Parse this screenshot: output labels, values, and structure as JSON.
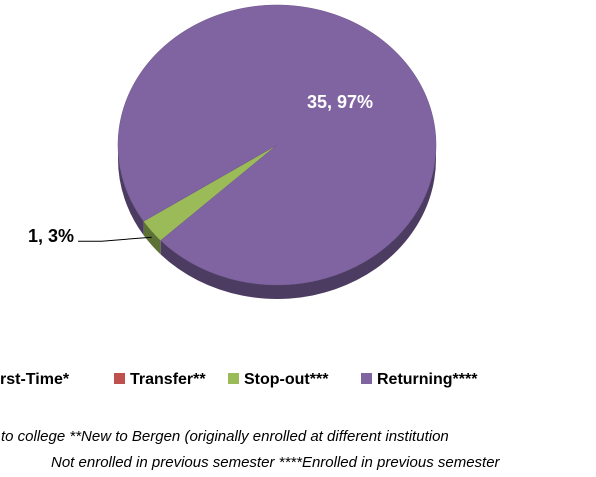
{
  "chart_data": {
    "type": "pie",
    "categories": [
      "rst-Time*",
      "Transfer**",
      "Stop-out***",
      "Returning****"
    ],
    "values": [
      0,
      0,
      1,
      35
    ],
    "value_labels": [
      null,
      null,
      "1, 3%",
      "35, 97%"
    ],
    "colors": [
      "#4f81bd",
      "#c0504d",
      "#9bbb59",
      "#8064a2"
    ],
    "legend": "bottom",
    "footnotes": [
      "to college **New to Bergen (originally enrolled at different institution",
      "Not enrolled in previous semester ****Enrolled in previous semester"
    ]
  }
}
